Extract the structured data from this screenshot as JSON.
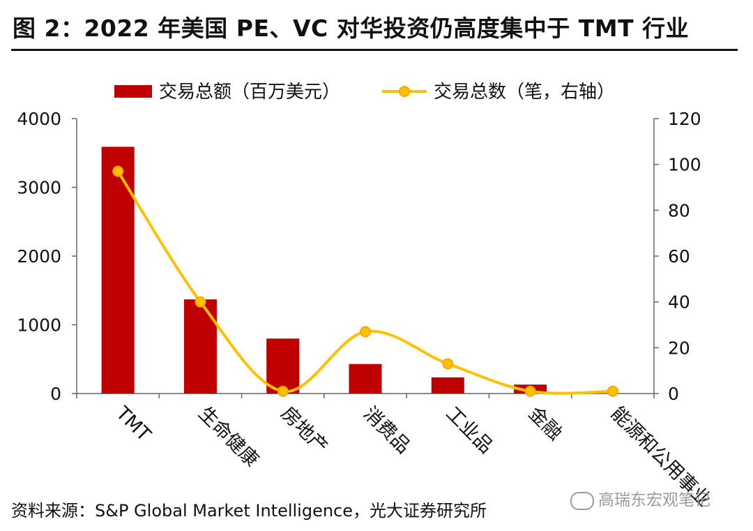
{
  "header": {
    "title": "图 2：2022 年美国 PE、VC 对华投资仍高度集中于 TMT 行业"
  },
  "chart_data": {
    "type": "bar",
    "categories": [
      "TMT",
      "生命健康",
      "房地产",
      "消费品",
      "工业品",
      "金融",
      "能源和公用事业"
    ],
    "series": [
      {
        "name": "交易总额（百万美元）",
        "type": "bar",
        "axis": "left",
        "color": "#C00000",
        "values": [
          3590,
          1370,
          800,
          430,
          235,
          130,
          0
        ]
      },
      {
        "name": "交易总数（笔，右轴）",
        "type": "line",
        "axis": "right",
        "color": "#FFC000",
        "marker_color": "#FFA500",
        "values": [
          97,
          40,
          1,
          27,
          13,
          1,
          1
        ]
      }
    ],
    "left_axis": {
      "ylim": [
        0,
        4000
      ],
      "ticks": [
        "0",
        "1000",
        "2000",
        "3000",
        "4000"
      ]
    },
    "right_axis": {
      "ylim": [
        0,
        120
      ],
      "ticks": [
        "0",
        "20",
        "40",
        "60",
        "80",
        "100",
        "120"
      ]
    },
    "legend_position": "top"
  },
  "footer": {
    "source": "资料来源：S&P Global Market Intelligence，光大证券研究所",
    "watermark": "高瑞东宏观笔记"
  }
}
